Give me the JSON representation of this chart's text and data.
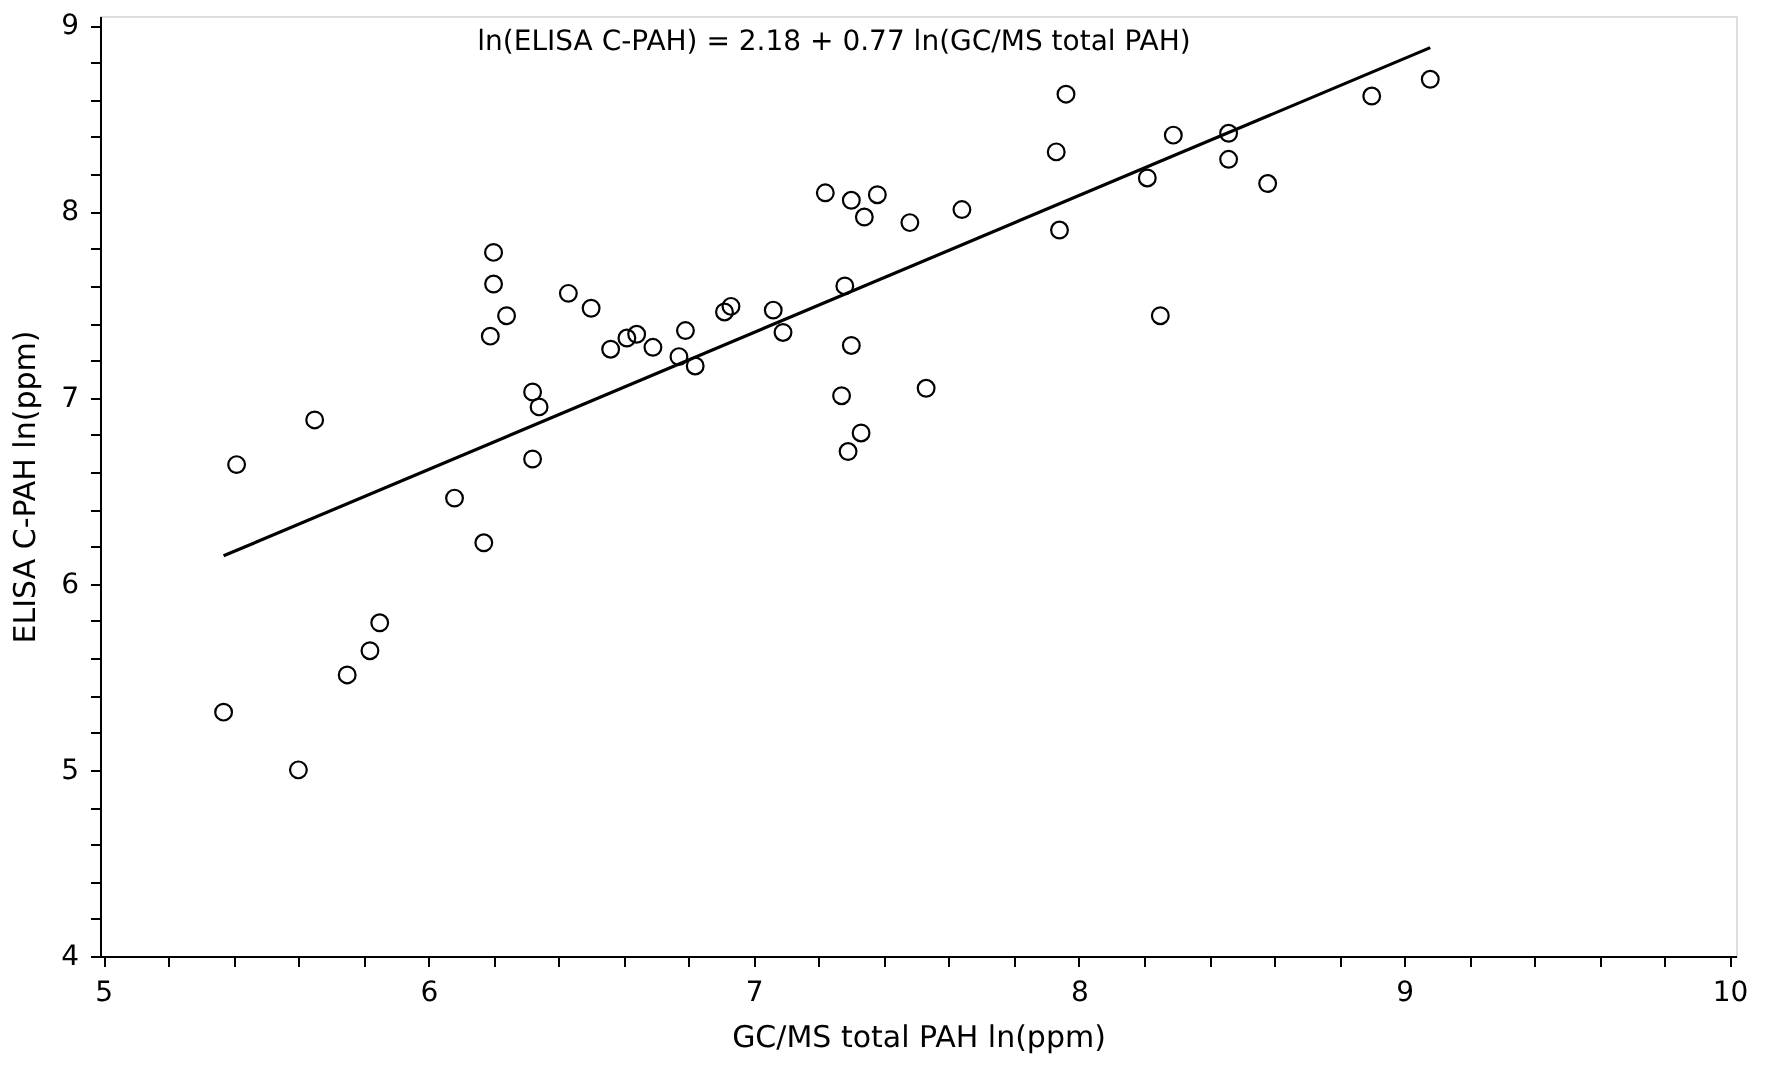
{
  "chart_data": {
    "type": "scatter",
    "xlabel": "GC/MS total PAH ln(ppm)",
    "ylabel": "ELISA C-PAH ln(ppm)",
    "annotations": [
      "ln(ELISA C-PAH) = 2.18 + 0.77 ln(GC/MS total PAH)"
    ],
    "xlim": [
      4.99,
      10.02
    ],
    "ylim": [
      4,
      9.05
    ],
    "xticks": [
      5,
      {
        "value": 5.2,
        "label": null
      },
      {
        "value": 5.4,
        "label": null
      },
      {
        "value": 5.6,
        "label": null
      },
      {
        "value": 5.8,
        "label": null
      },
      6,
      {
        "value": 6.2,
        "label": null
      },
      {
        "value": 6.4,
        "label": null
      },
      {
        "value": 6.6,
        "label": null
      },
      {
        "value": 6.8,
        "label": null
      },
      7,
      {
        "value": 7.2,
        "label": null
      },
      {
        "value": 7.4,
        "label": null
      },
      {
        "value": 7.6,
        "label": null
      },
      {
        "value": 7.8,
        "label": null
      },
      8,
      {
        "value": 8.2,
        "label": null
      },
      {
        "value": 8.4,
        "label": null
      },
      {
        "value": 8.6,
        "label": null
      },
      {
        "value": 8.8,
        "label": null
      },
      9,
      {
        "value": 9.2,
        "label": null
      },
      {
        "value": 9.4,
        "label": null
      },
      {
        "value": 9.6,
        "label": null
      },
      {
        "value": 9.8,
        "label": null
      },
      10
    ],
    "yticks": [
      4,
      {
        "value": 4.2,
        "label": null
      },
      {
        "value": 4.4,
        "label": null
      },
      {
        "value": 4.6,
        "label": null
      },
      {
        "value": 4.8,
        "label": null
      },
      5,
      {
        "value": 5.2,
        "label": null
      },
      {
        "value": 5.4,
        "label": null
      },
      {
        "value": 5.6,
        "label": null
      },
      {
        "value": 5.8,
        "label": null
      },
      6,
      {
        "value": 6.2,
        "label": null
      },
      {
        "value": 6.4,
        "label": null
      },
      {
        "value": 6.6,
        "label": null
      },
      {
        "value": 6.8,
        "label": null
      },
      7,
      {
        "value": 7.2,
        "label": null
      },
      {
        "value": 7.4,
        "label": null
      },
      {
        "value": 7.6,
        "label": null
      },
      {
        "value": 7.8,
        "label": null
      },
      8,
      {
        "value": 8.2,
        "label": null
      },
      {
        "value": 8.4,
        "label": null
      },
      {
        "value": 8.6,
        "label": null
      },
      {
        "value": 8.8,
        "label": null
      },
      9
    ],
    "grid": false,
    "legend": false,
    "marker": "circle",
    "series": [
      {
        "type": "scatter",
        "color": "#000000",
        "x": [
          6.2,
          6.2,
          6.24,
          6.19,
          6.43,
          6.5,
          6.56,
          6.61,
          6.64,
          6.69,
          6.79,
          6.77,
          6.32,
          6.34,
          6.32,
          6.08,
          6.17,
          5.65,
          5.41,
          5.85,
          5.82,
          5.75,
          5.37,
          5.6,
          6.82,
          6.91,
          6.93,
          7.06,
          7.09,
          7.28,
          7.3,
          7.27,
          7.33,
          7.29,
          7.53,
          7.22,
          7.3,
          7.38,
          7.34,
          7.48,
          7.64,
          7.96,
          7.93,
          7.94,
          8.21,
          8.29,
          8.46,
          8.46,
          8.25,
          8.58,
          8.9,
          9.08
        ],
        "values": [
          7.78,
          7.61,
          7.44,
          7.33,
          7.56,
          7.48,
          7.26,
          7.32,
          7.34,
          7.27,
          7.36,
          7.22,
          7.03,
          6.95,
          6.67,
          6.46,
          6.22,
          6.88,
          6.64,
          5.79,
          5.64,
          5.51,
          5.31,
          5.0,
          7.17,
          7.46,
          7.49,
          7.47,
          7.35,
          7.6,
          7.28,
          7.01,
          6.81,
          6.71,
          7.05,
          8.1,
          8.06,
          8.09,
          7.97,
          7.94,
          8.01,
          8.63,
          8.32,
          7.9,
          8.18,
          8.41,
          8.42,
          8.28,
          7.44,
          8.15,
          8.62,
          8.71
        ]
      },
      {
        "type": "line",
        "color": "#000000",
        "line_style": "solid",
        "marker": "none",
        "x": [
          5.37,
          9.08
        ],
        "values": [
          6.15,
          8.88
        ]
      }
    ]
  }
}
